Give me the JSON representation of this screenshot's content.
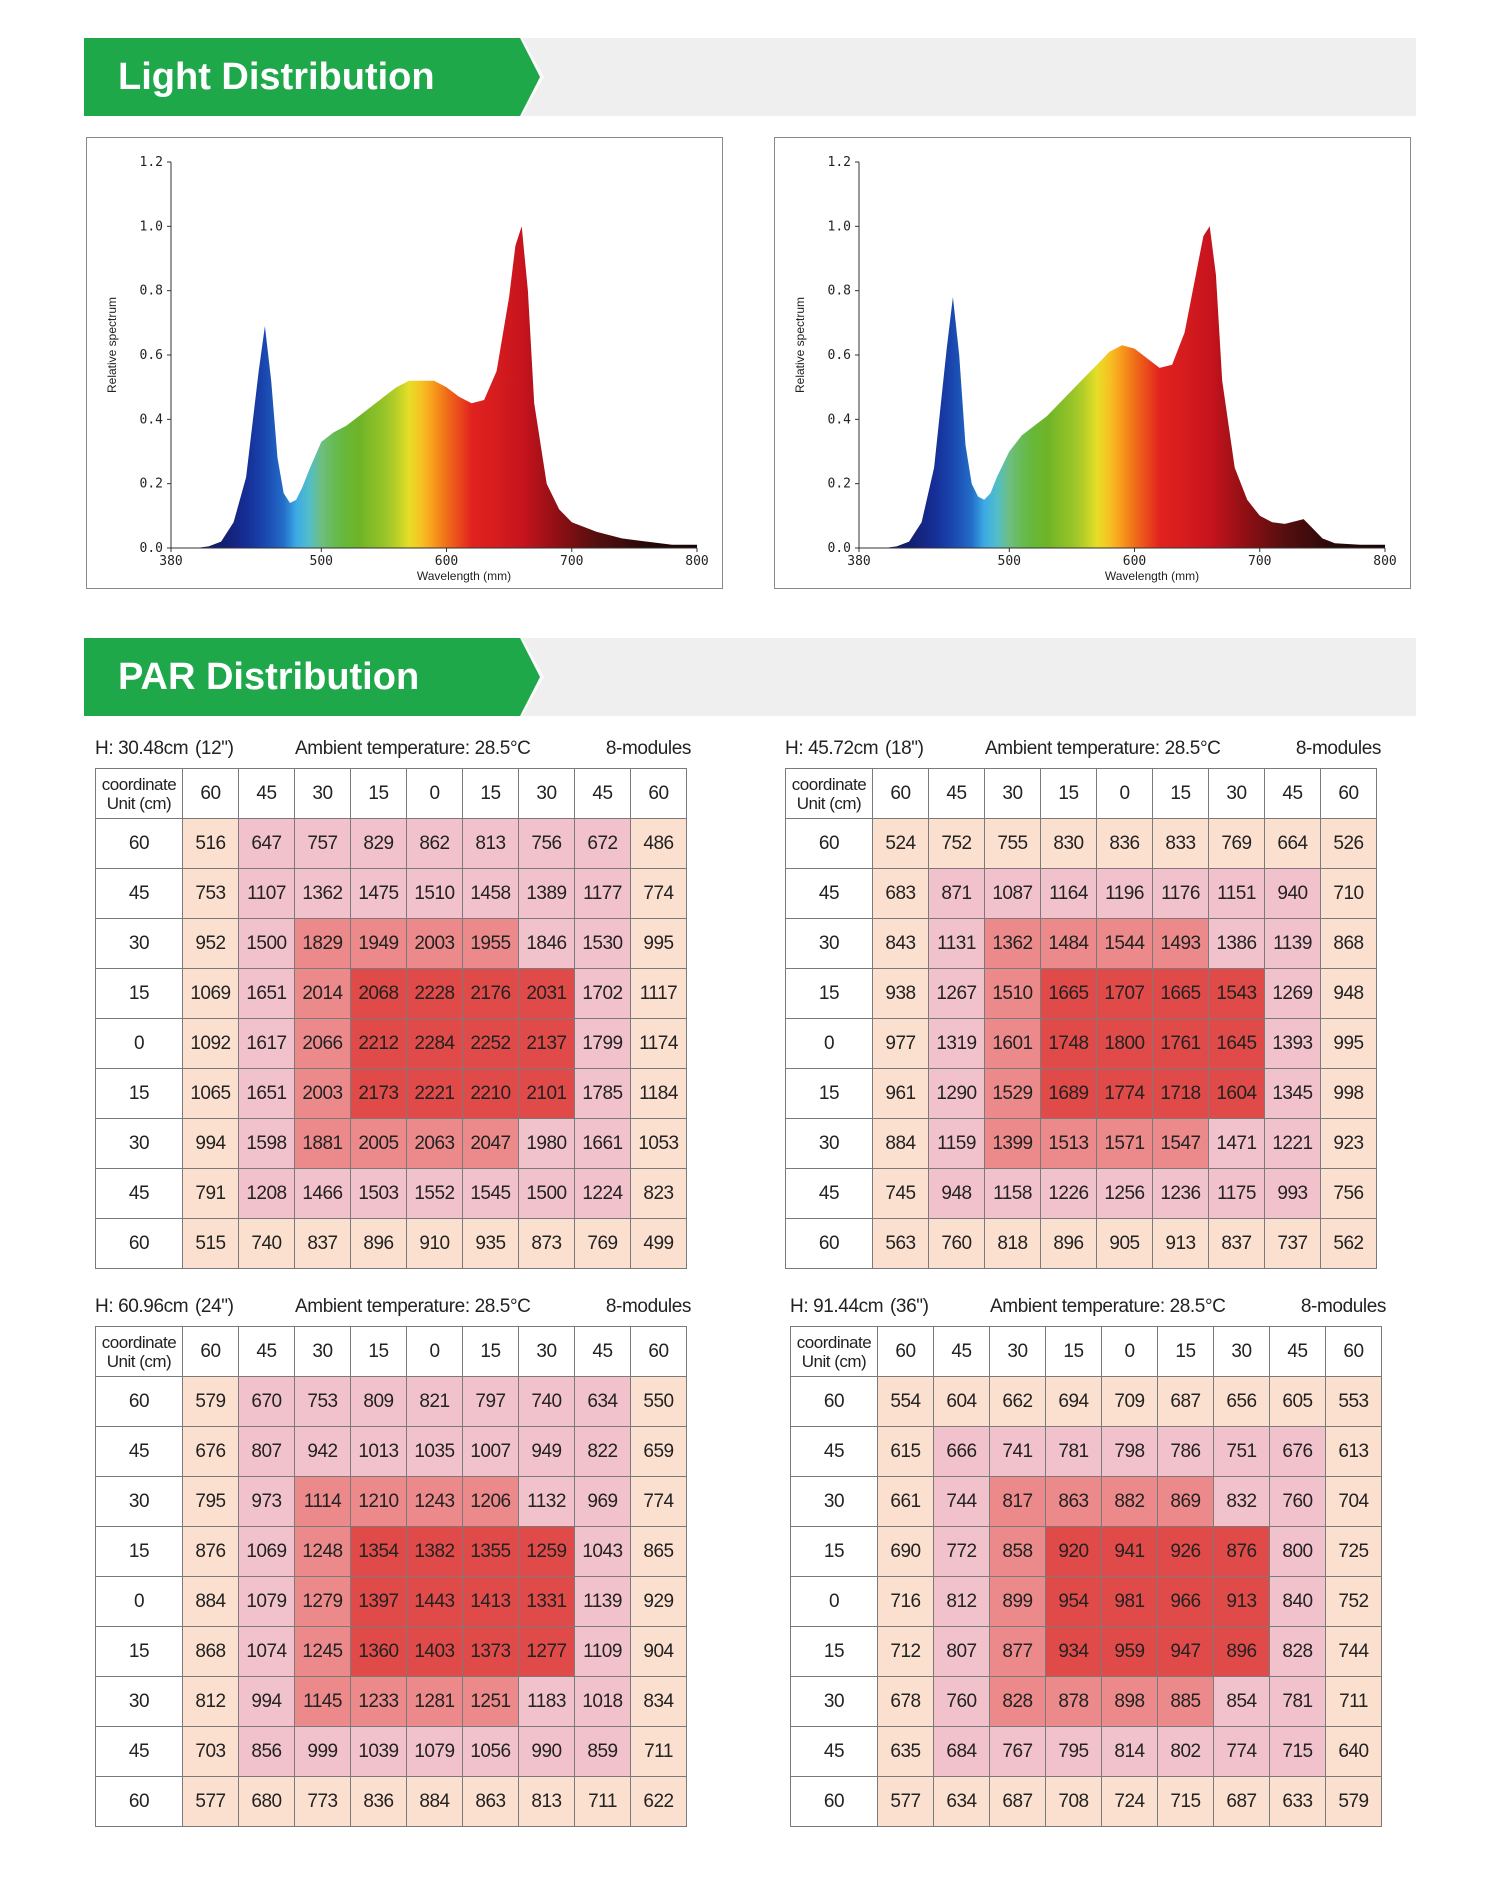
{
  "sections": {
    "light_title": "Light Distribution",
    "par_title": "PAR Distribution"
  },
  "colors": {
    "banner_green": "#1ea84a",
    "banner_gray": "#efefef",
    "cell_peach": "#fbe0d0",
    "cell_pink": "#f1c2cc",
    "cell_salmon": "#ec8a8b",
    "cell_red": "#e04b4a"
  },
  "chart_data": [
    {
      "type": "area",
      "title": "",
      "xlabel": "Wavelength (mm)",
      "ylabel": "Relative spectrum",
      "xlim": [
        380,
        800
      ],
      "ylim": [
        0,
        1.2
      ],
      "x_ticks": [
        "380",
        "500",
        "600",
        "700",
        "800"
      ],
      "y_ticks": [
        "0.0",
        "0.2",
        "0.4",
        "0.6",
        "0.8",
        "1.0",
        "1.2"
      ],
      "grid": false,
      "fill": "spectral rainbow gradient",
      "x": [
        380,
        400,
        410,
        420,
        430,
        440,
        450,
        455,
        460,
        465,
        470,
        475,
        480,
        485,
        490,
        500,
        510,
        520,
        530,
        540,
        550,
        560,
        570,
        580,
        590,
        600,
        610,
        620,
        630,
        640,
        650,
        655,
        660,
        665,
        670,
        680,
        690,
        700,
        720,
        740,
        760,
        780,
        800
      ],
      "y": [
        0,
        0,
        0.005,
        0.02,
        0.08,
        0.22,
        0.55,
        0.69,
        0.52,
        0.28,
        0.17,
        0.14,
        0.15,
        0.19,
        0.24,
        0.33,
        0.36,
        0.38,
        0.41,
        0.44,
        0.47,
        0.5,
        0.52,
        0.52,
        0.52,
        0.5,
        0.47,
        0.45,
        0.46,
        0.55,
        0.78,
        0.94,
        1.0,
        0.8,
        0.45,
        0.2,
        0.12,
        0.08,
        0.05,
        0.03,
        0.02,
        0.01,
        0.01
      ]
    },
    {
      "type": "area",
      "title": "",
      "xlabel": "Wavelength (mm)",
      "ylabel": "Relative spectrum",
      "xlim": [
        380,
        800
      ],
      "ylim": [
        0,
        1.2
      ],
      "x_ticks": [
        "380",
        "500",
        "600",
        "700",
        "800"
      ],
      "y_ticks": [
        "0.0",
        "0.2",
        "0.4",
        "0.6",
        "0.8",
        "1.0",
        "1.2"
      ],
      "grid": false,
      "fill": "spectral rainbow gradient",
      "x": [
        380,
        400,
        410,
        420,
        430,
        440,
        450,
        455,
        460,
        465,
        470,
        475,
        480,
        485,
        490,
        500,
        510,
        520,
        530,
        540,
        550,
        560,
        570,
        580,
        590,
        600,
        610,
        620,
        630,
        640,
        650,
        655,
        660,
        665,
        670,
        680,
        690,
        700,
        710,
        720,
        730,
        735,
        740,
        750,
        760,
        780,
        800
      ],
      "y": [
        0,
        0,
        0.005,
        0.02,
        0.08,
        0.25,
        0.62,
        0.78,
        0.6,
        0.32,
        0.2,
        0.16,
        0.15,
        0.17,
        0.22,
        0.3,
        0.35,
        0.38,
        0.41,
        0.45,
        0.49,
        0.53,
        0.57,
        0.61,
        0.63,
        0.62,
        0.59,
        0.56,
        0.57,
        0.67,
        0.87,
        0.97,
        1.0,
        0.85,
        0.52,
        0.25,
        0.15,
        0.1,
        0.08,
        0.075,
        0.085,
        0.09,
        0.07,
        0.03,
        0.015,
        0.01,
        0.01
      ]
    },
    {
      "type": "table",
      "height": "H: 30.48cm",
      "inch": "(12\")",
      "ambient": "Ambient temperature: 28.5°C",
      "modules": "8-modules",
      "corner": [
        "coordinate",
        "Unit (cm)"
      ],
      "columns": [
        "60",
        "45",
        "30",
        "15",
        "0",
        "15",
        "30",
        "45",
        "60"
      ],
      "rows": [
        {
          "label": "60",
          "values": [
            516,
            647,
            757,
            829,
            862,
            813,
            756,
            672,
            486
          ]
        },
        {
          "label": "45",
          "values": [
            753,
            1107,
            1362,
            1475,
            1510,
            1458,
            1389,
            1177,
            774
          ]
        },
        {
          "label": "30",
          "values": [
            952,
            1500,
            1829,
            1949,
            2003,
            1955,
            1846,
            1530,
            995
          ]
        },
        {
          "label": "15",
          "values": [
            1069,
            1651,
            2014,
            2068,
            2228,
            2176,
            2031,
            1702,
            1117
          ]
        },
        {
          "label": "0",
          "values": [
            1092,
            1617,
            2066,
            2212,
            2284,
            2252,
            2137,
            1799,
            1174
          ]
        },
        {
          "label": "15",
          "values": [
            1065,
            1651,
            2003,
            2173,
            2221,
            2210,
            2101,
            1785,
            1184
          ]
        },
        {
          "label": "30",
          "values": [
            994,
            1598,
            1881,
            2005,
            2063,
            2047,
            1980,
            1661,
            1053
          ]
        },
        {
          "label": "45",
          "values": [
            791,
            1208,
            1466,
            1503,
            1552,
            1545,
            1500,
            1224,
            823
          ]
        },
        {
          "label": "60",
          "values": [
            515,
            740,
            837,
            896,
            910,
            935,
            873,
            769,
            499
          ]
        }
      ],
      "shade": [
        "abbbbbbba",
        "abbbbbbba",
        "abccccbba",
        "abcddddba",
        "abcddddba",
        "abcddddba",
        "abccccbba",
        "abbbbbbba",
        "aaaaaaaaa"
      ]
    },
    {
      "type": "table",
      "height": "H: 45.72cm",
      "inch": "(18\")",
      "ambient": "Ambient temperature: 28.5°C",
      "modules": "8-modules",
      "corner": [
        "coordinate",
        "Unit (cm)"
      ],
      "columns": [
        "60",
        "45",
        "30",
        "15",
        "0",
        "15",
        "30",
        "45",
        "60"
      ],
      "rows": [
        {
          "label": "60",
          "values": [
            524,
            752,
            755,
            830,
            836,
            833,
            769,
            664,
            526
          ]
        },
        {
          "label": "45",
          "values": [
            683,
            871,
            1087,
            1164,
            1196,
            1176,
            1151,
            940,
            710
          ]
        },
        {
          "label": "30",
          "values": [
            843,
            1131,
            1362,
            1484,
            1544,
            1493,
            1386,
            1139,
            868
          ]
        },
        {
          "label": "15",
          "values": [
            938,
            1267,
            1510,
            1665,
            1707,
            1665,
            1543,
            1269,
            948
          ]
        },
        {
          "label": "0",
          "values": [
            977,
            1319,
            1601,
            1748,
            1800,
            1761,
            1645,
            1393,
            995
          ]
        },
        {
          "label": "15",
          "values": [
            961,
            1290,
            1529,
            1689,
            1774,
            1718,
            1604,
            1345,
            998
          ]
        },
        {
          "label": "30",
          "values": [
            884,
            1159,
            1399,
            1513,
            1571,
            1547,
            1471,
            1221,
            923
          ]
        },
        {
          "label": "45",
          "values": [
            745,
            948,
            1158,
            1226,
            1256,
            1236,
            1175,
            993,
            756
          ]
        },
        {
          "label": "60",
          "values": [
            563,
            760,
            818,
            896,
            905,
            913,
            837,
            737,
            562
          ]
        }
      ],
      "shade": [
        "aaaaaaaaa",
        "abbbbbbba",
        "abccccbba",
        "abcddddba",
        "abcddddba",
        "abcddddba",
        "abccccbba",
        "abbbbbbba",
        "aaaaaaaaa"
      ]
    },
    {
      "type": "table",
      "height": "H: 60.96cm",
      "inch": "(24\")",
      "ambient": "Ambient temperature: 28.5°C",
      "modules": "8-modules",
      "corner": [
        "coordinate",
        "Unit (cm)"
      ],
      "columns": [
        "60",
        "45",
        "30",
        "15",
        "0",
        "15",
        "30",
        "45",
        "60"
      ],
      "rows": [
        {
          "label": "60",
          "values": [
            579,
            670,
            753,
            809,
            821,
            797,
            740,
            634,
            550
          ]
        },
        {
          "label": "45",
          "values": [
            676,
            807,
            942,
            1013,
            1035,
            1007,
            949,
            822,
            659
          ]
        },
        {
          "label": "30",
          "values": [
            795,
            973,
            1114,
            1210,
            1243,
            1206,
            1132,
            969,
            774
          ]
        },
        {
          "label": "15",
          "values": [
            876,
            1069,
            1248,
            1354,
            1382,
            1355,
            1259,
            1043,
            865
          ]
        },
        {
          "label": "0",
          "values": [
            884,
            1079,
            1279,
            1397,
            1443,
            1413,
            1331,
            1139,
            929
          ]
        },
        {
          "label": "15",
          "values": [
            868,
            1074,
            1245,
            1360,
            1403,
            1373,
            1277,
            1109,
            904
          ]
        },
        {
          "label": "30",
          "values": [
            812,
            994,
            1145,
            1233,
            1281,
            1251,
            1183,
            1018,
            834
          ]
        },
        {
          "label": "45",
          "values": [
            703,
            856,
            999,
            1039,
            1079,
            1056,
            990,
            859,
            711
          ]
        },
        {
          "label": "60",
          "values": [
            577,
            680,
            773,
            836,
            884,
            863,
            813,
            711,
            622
          ]
        }
      ],
      "shade": [
        "abbbbbbba",
        "abbbbbbba",
        "abccccbba",
        "abcddddba",
        "abcddddba",
        "abcddddba",
        "abccccbba",
        "abbbbbbba",
        "aaaaaaaaa"
      ]
    },
    {
      "type": "table",
      "height": "H: 91.44cm",
      "inch": "(36\")",
      "ambient": "Ambient temperature: 28.5°C",
      "modules": "8-modules",
      "corner": [
        "coordinate",
        "Unit (cm)"
      ],
      "columns": [
        "60",
        "45",
        "30",
        "15",
        "0",
        "15",
        "30",
        "45",
        "60"
      ],
      "rows": [
        {
          "label": "60",
          "values": [
            554,
            604,
            662,
            694,
            709,
            687,
            656,
            605,
            553
          ]
        },
        {
          "label": "45",
          "values": [
            615,
            666,
            741,
            781,
            798,
            786,
            751,
            676,
            613
          ]
        },
        {
          "label": "30",
          "values": [
            661,
            744,
            817,
            863,
            882,
            869,
            832,
            760,
            704
          ]
        },
        {
          "label": "15",
          "values": [
            690,
            772,
            858,
            920,
            941,
            926,
            876,
            800,
            725
          ]
        },
        {
          "label": "0",
          "values": [
            716,
            812,
            899,
            954,
            981,
            966,
            913,
            840,
            752
          ]
        },
        {
          "label": "15",
          "values": [
            712,
            807,
            877,
            934,
            959,
            947,
            896,
            828,
            744
          ]
        },
        {
          "label": "30",
          "values": [
            678,
            760,
            828,
            878,
            898,
            885,
            854,
            781,
            711
          ]
        },
        {
          "label": "45",
          "values": [
            635,
            684,
            767,
            795,
            814,
            802,
            774,
            715,
            640
          ]
        },
        {
          "label": "60",
          "values": [
            577,
            634,
            687,
            708,
            724,
            715,
            687,
            633,
            579
          ]
        }
      ],
      "shade": [
        "aaaaaaaaa",
        "abbbbbbba",
        "abccccbba",
        "abcddddba",
        "abcddddba",
        "abcddddba",
        "abccccbba",
        "abbbbbbba",
        "aaaaaaaaa"
      ]
    }
  ]
}
